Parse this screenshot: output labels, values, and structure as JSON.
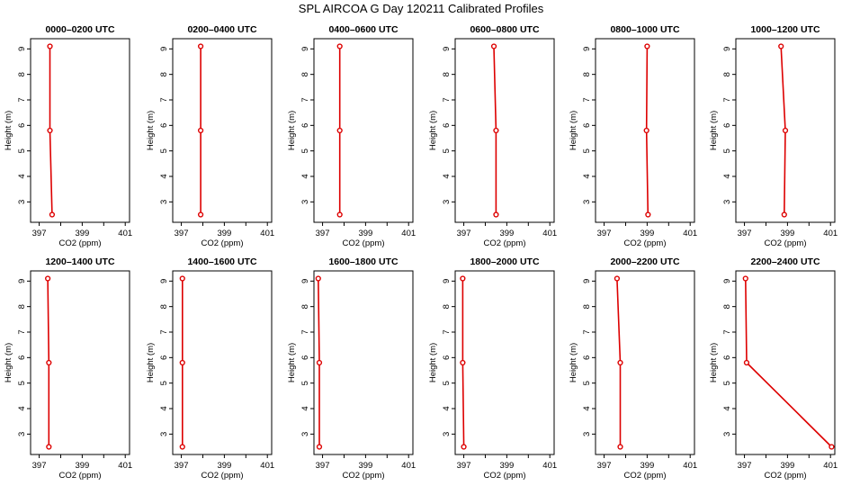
{
  "title": "SPL AIRCOA G  Day 120211  Calibrated Profiles",
  "chart_data": {
    "type": "line",
    "xlabel": "CO2 (ppm)",
    "ylabel": "Height (m)",
    "xlim": [
      396.6,
      401.2
    ],
    "ylim": [
      2.2,
      9.4
    ],
    "xticks": [
      397,
      399,
      401
    ],
    "xtick_labels": [
      "397",
      "399",
      "401"
    ],
    "yticks": [
      3,
      4,
      5,
      6,
      7,
      8,
      9
    ],
    "ytick_labels": [
      "3",
      "4",
      "5",
      "6",
      "7",
      "8",
      "9"
    ],
    "heights": [
      9.1,
      5.8,
      2.5
    ],
    "line_color": "#dd0000",
    "panels": [
      {
        "title": "0000–0200 UTC",
        "co2": [
          397.5,
          397.5,
          397.6
        ]
      },
      {
        "title": "0200–0400 UTC",
        "co2": [
          397.9,
          397.9,
          397.9
        ]
      },
      {
        "title": "0400–0600 UTC",
        "co2": [
          397.8,
          397.8,
          397.8
        ]
      },
      {
        "title": "0600–0800 UTC",
        "co2": [
          398.4,
          398.5,
          398.5
        ]
      },
      {
        "title": "0800–1000 UTC",
        "co2": [
          399.0,
          398.97,
          399.04
        ]
      },
      {
        "title": "1000–1200 UTC",
        "co2": [
          398.7,
          398.9,
          398.85
        ]
      },
      {
        "title": "1200–1400 UTC",
        "co2": [
          397.4,
          397.45,
          397.45
        ]
      },
      {
        "title": "1400–1600 UTC",
        "co2": [
          397.05,
          397.05,
          397.05
        ]
      },
      {
        "title": "1600–1800 UTC",
        "co2": [
          396.8,
          396.85,
          396.85
        ]
      },
      {
        "title": "1800–2000 UTC",
        "co2": [
          396.95,
          396.95,
          397.0
        ]
      },
      {
        "title": "2000–2200 UTC",
        "co2": [
          397.6,
          397.75,
          397.75
        ]
      },
      {
        "title": "2200–2400 UTC",
        "co2": [
          397.05,
          397.1,
          401.05
        ]
      }
    ]
  }
}
